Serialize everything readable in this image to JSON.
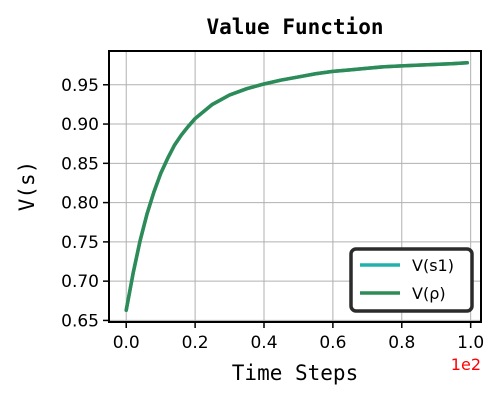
{
  "chart_data": {
    "type": "line",
    "title": "Value Function",
    "xlabel": "Time Steps",
    "ylabel": "V(s)",
    "x_offset_text": "1e2",
    "x_offset_color": "#ff0000",
    "xlim": [
      -0.05,
      1.03
    ],
    "ylim": [
      0.648,
      0.993
    ],
    "xticks": [
      0.0,
      0.2,
      0.4,
      0.6,
      0.8,
      1.0
    ],
    "xtick_labels": [
      "0.0",
      "0.2",
      "0.4",
      "0.6",
      "0.8",
      "1.0"
    ],
    "yticks": [
      0.65,
      0.7,
      0.75,
      0.8,
      0.85,
      0.9,
      0.95
    ],
    "ytick_labels": [
      "0.65",
      "0.70",
      "0.75",
      "0.80",
      "0.85",
      "0.90",
      "0.95"
    ],
    "grid": true,
    "legend_position": "lower-right",
    "series": [
      {
        "name": "V(s1)",
        "color": "#20b2aa",
        "x": [
          0.0,
          0.02,
          0.04,
          0.06,
          0.08,
          0.1,
          0.12,
          0.14,
          0.16,
          0.18,
          0.2,
          0.25,
          0.3,
          0.35,
          0.4,
          0.45,
          0.5,
          0.55,
          0.6,
          0.65,
          0.7,
          0.75,
          0.8,
          0.85,
          0.9,
          0.95,
          0.99
        ],
        "values": [
          0.663,
          0.71,
          0.751,
          0.785,
          0.813,
          0.837,
          0.856,
          0.873,
          0.886,
          0.897,
          0.907,
          0.925,
          0.937,
          0.945,
          0.951,
          0.956,
          0.96,
          0.964,
          0.967,
          0.969,
          0.971,
          0.973,
          0.974,
          0.975,
          0.976,
          0.977,
          0.978
        ]
      },
      {
        "name": "V(ρ)",
        "color": "#2e8b57",
        "x": [
          0.0,
          0.02,
          0.04,
          0.06,
          0.08,
          0.1,
          0.12,
          0.14,
          0.16,
          0.18,
          0.2,
          0.25,
          0.3,
          0.35,
          0.4,
          0.45,
          0.5,
          0.55,
          0.6,
          0.65,
          0.7,
          0.75,
          0.8,
          0.85,
          0.9,
          0.95,
          0.99
        ],
        "values": [
          0.663,
          0.71,
          0.751,
          0.785,
          0.813,
          0.837,
          0.856,
          0.873,
          0.886,
          0.897,
          0.907,
          0.925,
          0.937,
          0.945,
          0.951,
          0.956,
          0.96,
          0.964,
          0.967,
          0.969,
          0.971,
          0.973,
          0.974,
          0.975,
          0.976,
          0.977,
          0.978
        ]
      }
    ]
  }
}
